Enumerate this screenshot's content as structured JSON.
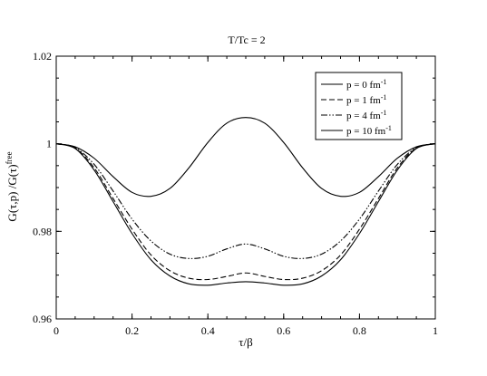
{
  "chart_data": {
    "type": "line",
    "title": "T/Tc = 2",
    "xlabel": "τ/β",
    "ylabel": {
      "main": "G(τ,p)  /G(τ)",
      "superscript": "free"
    },
    "xlim": [
      0,
      1
    ],
    "ylim": [
      0.96,
      1.02
    ],
    "x_ticks": [
      {
        "value": 0,
        "label": "0"
      },
      {
        "value": 0.2,
        "label": "0.2"
      },
      {
        "value": 0.4,
        "label": "0.4"
      },
      {
        "value": 0.6,
        "label": "0.6"
      },
      {
        "value": 0.8,
        "label": "0.8"
      },
      {
        "value": 1,
        "label": "1"
      }
    ],
    "y_ticks": [
      {
        "value": 0.96,
        "label": "0.96"
      },
      {
        "value": 0.98,
        "label": "0.98"
      },
      {
        "value": 1.0,
        "label": "1"
      },
      {
        "value": 1.02,
        "label": "1.02"
      }
    ],
    "x_minor_step": 0.05,
    "y_minor_step": 0.005,
    "grid": false,
    "legend_position": "top-right",
    "x": [
      0,
      0.05,
      0.1,
      0.15,
      0.2,
      0.25,
      0.3,
      0.35,
      0.4,
      0.45,
      0.5,
      0.55,
      0.6,
      0.65,
      0.7,
      0.75,
      0.8,
      0.85,
      0.9,
      0.95,
      1
    ],
    "series": [
      {
        "name": "p = 0 fm",
        "superscript": "-1",
        "dash": "solid",
        "values": [
          1.0,
          0.9993,
          0.9967,
          0.9925,
          0.9889,
          0.988,
          0.9898,
          0.9945,
          1.0003,
          1.0047,
          1.006,
          1.0047,
          1.0003,
          0.9945,
          0.9898,
          0.988,
          0.9889,
          0.9925,
          0.9967,
          0.9993,
          1.0
        ]
      },
      {
        "name": "p = 1 fm",
        "superscript": "-1",
        "dash": "dashed",
        "values": [
          1.0,
          0.999,
          0.9945,
          0.9875,
          0.9805,
          0.9746,
          0.971,
          0.9693,
          0.969,
          0.9697,
          0.9705,
          0.9697,
          0.969,
          0.9693,
          0.971,
          0.9746,
          0.9805,
          0.9875,
          0.9945,
          0.999,
          1.0
        ]
      },
      {
        "name": "p = 4 fm",
        "superscript": "-1",
        "dash": "dashdotdot",
        "values": [
          1.0,
          0.9991,
          0.9953,
          0.9892,
          0.9828,
          0.9778,
          0.9748,
          0.9738,
          0.9743,
          0.976,
          0.9771,
          0.976,
          0.9743,
          0.9738,
          0.9748,
          0.9778,
          0.9828,
          0.9892,
          0.9953,
          0.9991,
          1.0
        ]
      },
      {
        "name": "p = 10 fm",
        "superscript": "-1",
        "dash": "solid",
        "values": [
          1.0,
          0.9989,
          0.994,
          0.9868,
          0.9795,
          0.9735,
          0.9698,
          0.968,
          0.9677,
          0.9682,
          0.9685,
          0.9682,
          0.9677,
          0.968,
          0.9698,
          0.9735,
          0.9795,
          0.9868,
          0.994,
          0.9989,
          1.0
        ]
      }
    ]
  }
}
